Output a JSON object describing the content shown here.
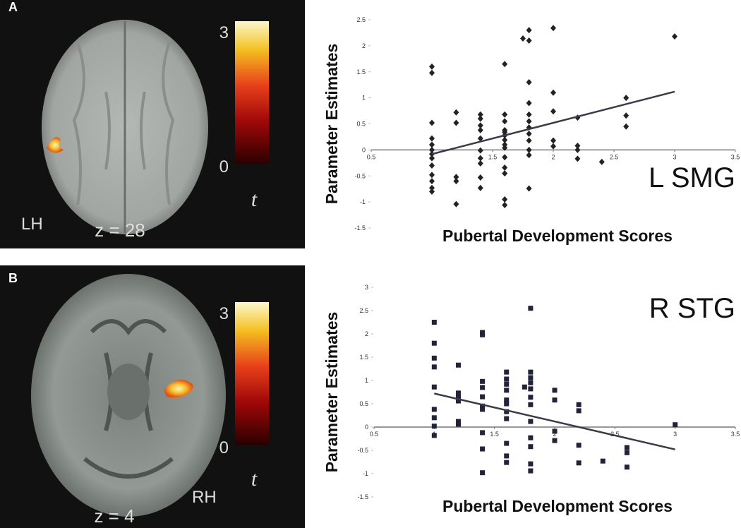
{
  "brain_panels": [
    {
      "label": "A",
      "hemisphere": "LH",
      "slice": "z = 28",
      "colorbar_ticks": [
        0,
        3
      ],
      "colorbar_symbol": "t"
    },
    {
      "label": "B",
      "hemisphere": "RH",
      "slice": "z = 4",
      "colorbar_ticks": [
        0,
        3
      ],
      "colorbar_symbol": "t"
    }
  ],
  "chart_data": [
    {
      "type": "scatter",
      "annotation": "L SMG",
      "x_label": "Pubertal Development Scores",
      "y_label": "Parameter Estimates",
      "marker": "diamond",
      "color": "#222222",
      "x": [
        1,
        1,
        1,
        1,
        1,
        1,
        1,
        1,
        1,
        1,
        1,
        1,
        1,
        1.2,
        1.2,
        1.2,
        1.2,
        1.2,
        1.4,
        1.4,
        1.4,
        1.4,
        1.4,
        1.4,
        1.4,
        1.4,
        1.4,
        1.4,
        1.6,
        1.6,
        1.6,
        1.6,
        1.6,
        1.6,
        1.6,
        1.6,
        1.6,
        1.6,
        1.6,
        1.6,
        1.6,
        1.6,
        1.75,
        1.8,
        1.8,
        1.8,
        1.8,
        1.8,
        1.8,
        1.8,
        1.8,
        1.8,
        1.8,
        1.8,
        1.8,
        2,
        2,
        2,
        2,
        2,
        2.2,
        2.2,
        2.2,
        2.2,
        2.4,
        2.6,
        2.6,
        2.6,
        3
      ],
      "values": [
        1.6,
        1.48,
        0.52,
        0.22,
        0.1,
        0,
        -0.08,
        -0.16,
        -0.3,
        -0.48,
        -0.6,
        -0.73,
        -0.8,
        0.72,
        0.52,
        -0.52,
        -0.6,
        -1.04,
        0.68,
        0.6,
        0.47,
        0.38,
        0.22,
        -0.01,
        -0.16,
        -0.26,
        -0.53,
        -0.73,
        1.65,
        0.68,
        0.55,
        0.38,
        0.34,
        0.28,
        0.19,
        0.1,
        0.04,
        -0.14,
        -0.34,
        -0.45,
        -0.95,
        -1.06,
        2.14,
        2.3,
        2.1,
        1.3,
        0.9,
        0.68,
        0.55,
        0.43,
        0.31,
        0.18,
        0,
        -0.1,
        -0.74,
        2.34,
        1.1,
        0.74,
        0.18,
        0.07,
        0.62,
        0.08,
        0,
        -0.17,
        -0.23,
        1.0,
        0.66,
        0.45,
        2.18
      ],
      "trendline": {
        "x": [
          1,
          3
        ],
        "values": [
          -0.08,
          1.12
        ]
      },
      "xlim": [
        0.5,
        3.5
      ],
      "xticks": [
        0.5,
        1,
        1.5,
        2,
        2.5,
        3,
        3.5
      ],
      "ylim": [
        -1.5,
        2.5
      ],
      "yticks": [
        -1.5,
        -1,
        -0.5,
        0,
        0.5,
        1,
        1.5,
        2,
        2.5
      ]
    },
    {
      "type": "scatter",
      "annotation": "R STG",
      "x_label": "Pubertal Development Scores",
      "y_label": "Parameter Estimates",
      "marker": "square",
      "color": "#22223a",
      "x": [
        1,
        1,
        1,
        1,
        1,
        1,
        1,
        1,
        1,
        1.2,
        1.2,
        1.2,
        1.2,
        1.2,
        1.2,
        1.4,
        1.4,
        1.4,
        1.4,
        1.4,
        1.4,
        1.4,
        1.4,
        1.4,
        1.4,
        1.6,
        1.6,
        1.6,
        1.6,
        1.6,
        1.6,
        1.6,
        1.6,
        1.6,
        1.6,
        1.6,
        1.75,
        1.8,
        1.8,
        1.8,
        1.8,
        1.8,
        1.8,
        1.8,
        1.8,
        1.8,
        1.8,
        1.8,
        1.8,
        2,
        2,
        2,
        2,
        2.2,
        2.2,
        2.2,
        2.2,
        2.4,
        2.6,
        2.6,
        2.6,
        3
      ],
      "values": [
        2.25,
        1.8,
        1.48,
        1.29,
        0.86,
        0.38,
        0.2,
        0.02,
        -0.18,
        1.33,
        0.73,
        0.64,
        0.56,
        0.12,
        0.06,
        2.03,
        1.98,
        0.98,
        0.85,
        0.65,
        0.45,
        0.38,
        -0.12,
        -0.47,
        -0.98,
        1.18,
        1.03,
        0.92,
        0.79,
        0.58,
        0.5,
        0.33,
        0.18,
        -0.35,
        -0.62,
        -0.76,
        0.86,
        2.55,
        1.18,
        1.06,
        0.95,
        0.82,
        0.64,
        0.48,
        0.12,
        -0.23,
        -0.42,
        -0.79,
        -0.94,
        0.79,
        0.58,
        -0.09,
        -0.29,
        0.48,
        0.35,
        -0.39,
        -0.77,
        -0.73,
        -0.44,
        -0.55,
        -0.86,
        0.05
      ],
      "trendline": {
        "x": [
          1,
          3
        ],
        "values": [
          0.72,
          -0.48
        ]
      },
      "xlim": [
        0.5,
        3.5
      ],
      "xticks": [
        0.5,
        1,
        1.5,
        2,
        2.5,
        3,
        3.5
      ],
      "ylim": [
        -1.5,
        3
      ],
      "yticks": [
        -1.5,
        -1,
        -0.5,
        0,
        0.5,
        1,
        1.5,
        2,
        2.5,
        3
      ]
    }
  ]
}
